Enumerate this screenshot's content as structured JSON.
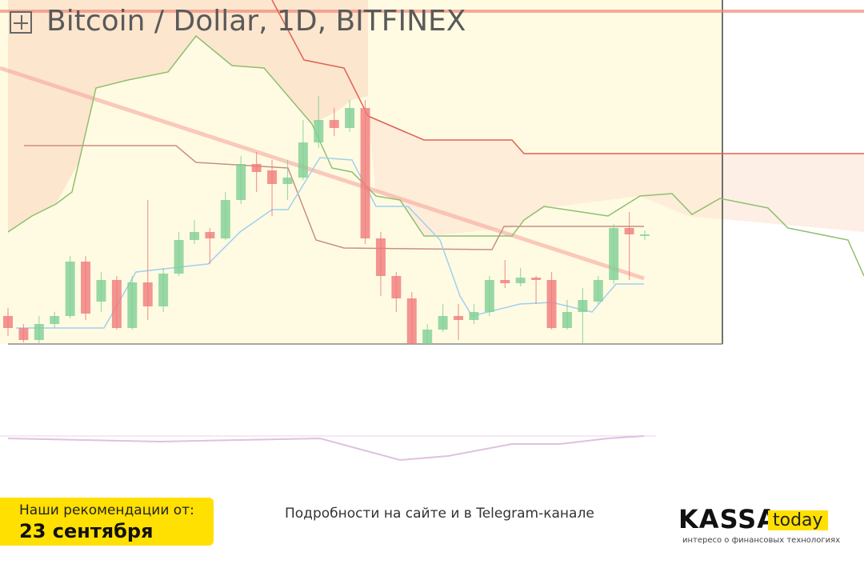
{
  "chart_data": {
    "type": "candlestick",
    "title": "Bitcoin / Dollar, 1D, BITFINEX",
    "up_color": "#7fcf95",
    "down_color": "#f07a7a",
    "ylim": [
      9570,
      10860
    ],
    "open": [
      9675,
      9630,
      9585,
      9645,
      9675,
      9879,
      9729,
      9810,
      9630,
      9801,
      9711,
      9834,
      9960,
      9990,
      9966,
      10110,
      10245,
      10221,
      10170,
      10194,
      10326,
      10410,
      10380,
      10455,
      9966,
      9825,
      9741,
      9570,
      9624,
      9675,
      9660,
      9690,
      9810,
      9798,
      9819,
      9810,
      9630,
      9690,
      9729,
      9810,
      10005,
      9975
    ],
    "high": [
      9705,
      9645,
      9675,
      9690,
      9900,
      9900,
      9840,
      9825,
      9825,
      10110,
      9855,
      9990,
      10035,
      10005,
      10140,
      10275,
      10290,
      10260,
      10260,
      10410,
      10500,
      10455,
      10485,
      10485,
      9990,
      9840,
      9765,
      9645,
      9720,
      9720,
      9720,
      9825,
      9885,
      9855,
      9825,
      9840,
      9735,
      9780,
      9825,
      10020,
      10065,
      9996
    ],
    "low": [
      9600,
      9576,
      9570,
      9630,
      9666,
      9660,
      9690,
      9624,
      9624,
      9660,
      9690,
      9825,
      9945,
      9870,
      9960,
      10095,
      10140,
      10050,
      10110,
      10185,
      10305,
      10350,
      10365,
      9945,
      9750,
      9690,
      9570,
      9570,
      9615,
      9585,
      9645,
      9675,
      9780,
      9786,
      9720,
      9624,
      9624,
      9570,
      9720,
      9795,
      9810,
      9960
    ],
    "close": [
      9630,
      9585,
      9645,
      9675,
      9879,
      9684,
      9810,
      9630,
      9801,
      9711,
      9834,
      9960,
      9990,
      9966,
      10110,
      10245,
      10215,
      10170,
      10194,
      10326,
      10410,
      10380,
      10455,
      9966,
      9825,
      9741,
      9570,
      9624,
      9675,
      9660,
      9690,
      9810,
      9798,
      9819,
      9810,
      9630,
      9690,
      9735,
      9810,
      10005,
      9981,
      9981
    ]
  },
  "promo": {
    "line1": "Наши рекомендации от:",
    "line2": "23 сентября"
  },
  "footer": {
    "text": "Подробности на сайте и в Telegram-канале"
  },
  "logo": {
    "name": "KASSA",
    "suffix": "today",
    "tagline": "интересо о финансовых технологиях"
  }
}
